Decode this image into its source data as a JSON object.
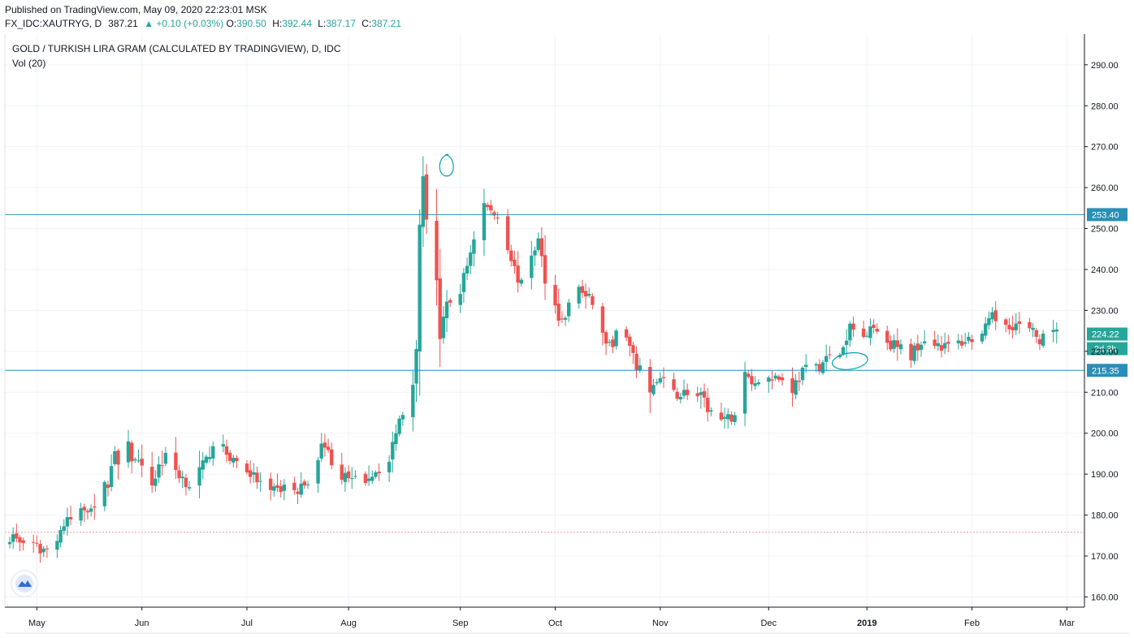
{
  "header": {
    "published": "Published on TradingView.com, May 09, 2020 22:23:01 MSK",
    "symbol": "FX_IDC:XAUTRYG, D",
    "last": "387.21",
    "change": "▲ +0.10 (+0.03%)",
    "o_label": "O:",
    "o_value": "390.50",
    "h_label": "H:",
    "h_value": "392.44",
    "l_label": "L:",
    "l_value": "387.17",
    "c_label": "C:",
    "c_value": "387.21"
  },
  "legend": {
    "title": "GOLD / TURKISH LIRA GRAM (CALCULATED BY TRADINGVIEW), D, IDC",
    "indicator": "Vol (20)"
  },
  "colors": {
    "up": "#26a69a",
    "down": "#ef5350",
    "hline": "#2a8fb5",
    "grid": "#f0f3fa",
    "axis": "#131722",
    "annotation": "#00a3b5"
  },
  "chart_data": {
    "type": "candlestick",
    "x_axis_labels": [
      {
        "label": "May",
        "date": "2018-05-01",
        "bold": false
      },
      {
        "label": "Jun",
        "date": "2018-06-01",
        "bold": false
      },
      {
        "label": "Jul",
        "date": "2018-07-02",
        "bold": false
      },
      {
        "label": "Aug",
        "date": "2018-08-01",
        "bold": false
      },
      {
        "label": "Sep",
        "date": "2018-09-03",
        "bold": false
      },
      {
        "label": "Oct",
        "date": "2018-10-01",
        "bold": false
      },
      {
        "label": "Nov",
        "date": "2018-11-01",
        "bold": false
      },
      {
        "label": "Dec",
        "date": "2018-12-03",
        "bold": false
      },
      {
        "label": "2019",
        "date": "2019-01-01",
        "bold": true
      },
      {
        "label": "Feb",
        "date": "2019-02-01",
        "bold": false
      },
      {
        "label": "Mar",
        "date": "2019-03-01",
        "bold": false
      }
    ],
    "y_ticks": [
      "160.00",
      "170.00",
      "180.00",
      "190.00",
      "200.00",
      "210.00",
      "220.00",
      "230.00",
      "240.00",
      "250.00",
      "260.00",
      "270.00",
      "280.00",
      "290.00"
    ],
    "ylim": [
      157.5,
      297.5
    ],
    "horizontal_lines": [
      {
        "value": 253.4,
        "label": "253.40"
      },
      {
        "value": 215.35,
        "label": "215.35"
      }
    ],
    "last_price": {
      "value": 224.22,
      "label": "224.22",
      "countdown": "2d 3h"
    },
    "dotted_line": 175.8,
    "annotations": [
      {
        "type": "circle",
        "date": "2018-08-30",
        "value": 265.2,
        "note": "hand-drawn circle around local top"
      },
      {
        "type": "ellipse",
        "date": "2018-12-27",
        "value": 217.6,
        "note": "hand-drawn ellipse around breakout"
      }
    ],
    "close_path": [
      [
        "2018-04-23",
        175.0
      ],
      [
        "2018-04-30",
        172.0
      ],
      [
        "2018-05-04",
        171.5
      ],
      [
        "2018-05-09",
        177.5
      ],
      [
        "2018-05-14",
        181.0
      ],
      [
        "2018-05-18",
        183.0
      ],
      [
        "2018-05-22",
        188.0
      ],
      [
        "2018-05-24",
        196.0
      ],
      [
        "2018-05-25",
        191.0
      ],
      [
        "2018-05-28",
        199.0
      ],
      [
        "2018-05-29",
        194.0
      ],
      [
        "2018-05-31",
        192.0
      ],
      [
        "2018-06-04",
        187.5
      ],
      [
        "2018-06-06",
        192.0
      ],
      [
        "2018-06-08",
        194.0
      ],
      [
        "2018-06-12",
        190.0
      ],
      [
        "2018-06-15",
        187.5
      ],
      [
        "2018-06-20",
        193.0
      ],
      [
        "2018-06-22",
        198.0
      ],
      [
        "2018-06-26",
        195.0
      ],
      [
        "2018-07-02",
        191.0
      ],
      [
        "2018-07-05",
        188.5
      ],
      [
        "2018-07-09",
        185.0
      ],
      [
        "2018-07-13",
        187.0
      ],
      [
        "2018-07-17",
        185.5
      ],
      [
        "2018-07-20",
        189.0
      ],
      [
        "2018-07-23",
        192.0
      ],
      [
        "2018-07-24",
        199.0
      ],
      [
        "2018-07-26",
        195.0
      ],
      [
        "2018-07-30",
        189.5
      ],
      [
        "2018-08-02",
        188.0
      ],
      [
        "2018-08-06",
        189.0
      ],
      [
        "2018-08-09",
        191.0
      ],
      [
        "2018-08-13",
        193.0
      ],
      [
        "2018-08-15",
        201.0
      ],
      [
        "2018-08-20",
        213.0
      ],
      [
        "2018-08-21",
        222.0
      ],
      [
        "2018-08-22",
        250.0
      ],
      [
        "2018-08-23",
        263.0
      ],
      [
        "2018-08-24",
        253.0
      ],
      [
        "2018-08-25",
        263.0
      ],
      [
        "2018-08-27",
        238.0
      ],
      [
        "2018-08-28",
        223.0
      ],
      [
        "2018-08-29",
        227.0
      ],
      [
        "2018-08-30",
        231.0
      ],
      [
        "2018-09-03",
        235.0
      ],
      [
        "2018-09-05",
        241.0
      ],
      [
        "2018-09-07",
        248.0
      ],
      [
        "2018-09-10",
        256.0
      ],
      [
        "2018-09-12",
        254.0
      ],
      [
        "2018-09-14",
        253.0
      ],
      [
        "2018-09-17",
        246.0
      ],
      [
        "2018-09-19",
        240.0
      ],
      [
        "2018-09-21",
        236.0
      ],
      [
        "2018-09-24",
        244.0
      ],
      [
        "2018-09-26",
        247.0
      ],
      [
        "2018-09-28",
        238.0
      ],
      [
        "2018-10-01",
        231.0
      ],
      [
        "2018-10-03",
        227.0
      ],
      [
        "2018-10-05",
        231.0
      ],
      [
        "2018-10-08",
        236.0
      ],
      [
        "2018-10-10",
        233.0
      ],
      [
        "2018-10-12",
        232.0
      ],
      [
        "2018-10-15",
        224.0
      ],
      [
        "2018-10-17",
        221.0
      ],
      [
        "2018-10-19",
        224.0
      ],
      [
        "2018-10-22",
        223.0
      ],
      [
        "2018-10-24",
        218.0
      ],
      [
        "2018-10-26",
        215.0
      ],
      [
        "2018-10-29",
        211.0
      ],
      [
        "2018-11-01",
        213.0
      ],
      [
        "2018-11-05",
        209.5
      ],
      [
        "2018-11-09",
        210.0
      ],
      [
        "2018-11-13",
        208.5
      ],
      [
        "2018-11-16",
        205.0
      ],
      [
        "2018-11-20",
        202.5
      ],
      [
        "2018-11-23",
        205.0
      ],
      [
        "2018-11-26",
        214.0
      ],
      [
        "2018-11-29",
        212.0
      ],
      [
        "2018-12-03",
        214.5
      ],
      [
        "2018-12-06",
        213.5
      ],
      [
        "2018-12-10",
        211.0
      ],
      [
        "2018-12-13",
        215.0
      ],
      [
        "2018-12-17",
        216.0
      ],
      [
        "2018-12-20",
        218.0
      ],
      [
        "2018-12-24",
        219.5
      ],
      [
        "2018-12-26",
        222.0
      ],
      [
        "2018-12-27",
        226.0
      ],
      [
        "2018-12-31",
        223.5
      ],
      [
        "2019-01-02",
        227.0
      ],
      [
        "2019-01-04",
        225.0
      ],
      [
        "2019-01-08",
        222.0
      ],
      [
        "2019-01-11",
        220.5
      ],
      [
        "2019-01-14",
        219.0
      ],
      [
        "2019-01-17",
        223.0
      ],
      [
        "2019-01-21",
        222.5
      ],
      [
        "2019-01-24",
        221.0
      ],
      [
        "2019-01-28",
        222.0
      ],
      [
        "2019-01-31",
        223.0
      ],
      [
        "2019-02-04",
        224.0
      ],
      [
        "2019-02-07",
        228.0
      ],
      [
        "2019-02-11",
        227.0
      ],
      [
        "2019-02-14",
        226.5
      ],
      [
        "2019-02-18",
        225.0
      ],
      [
        "2019-02-21",
        223.0
      ],
      [
        "2019-02-26",
        224.2
      ]
    ]
  }
}
